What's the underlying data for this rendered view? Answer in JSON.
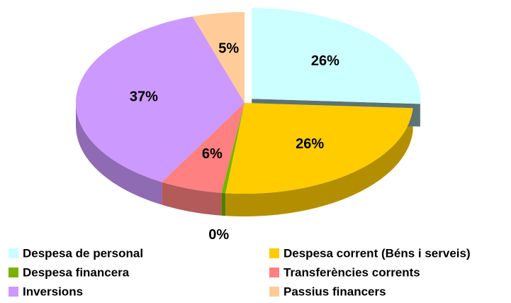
{
  "chart_data": {
    "type": "pie",
    "categories": [
      "Despesa de personal",
      "Despesa corrent (Béns i serveis)",
      "Despesa financera",
      "Transferències corrents",
      "Inversions",
      "Passius financers"
    ],
    "values": [
      26,
      26,
      0.4,
      6,
      37,
      5
    ],
    "value_labels": [
      "26%",
      "26%",
      "0%",
      "6%",
      "37%",
      "5%"
    ],
    "colors": [
      "#ccffff",
      "#ffcc00",
      "#77b300",
      "#ff8080",
      "#cc99ff",
      "#ffcc99"
    ],
    "legend": "bottom"
  }
}
